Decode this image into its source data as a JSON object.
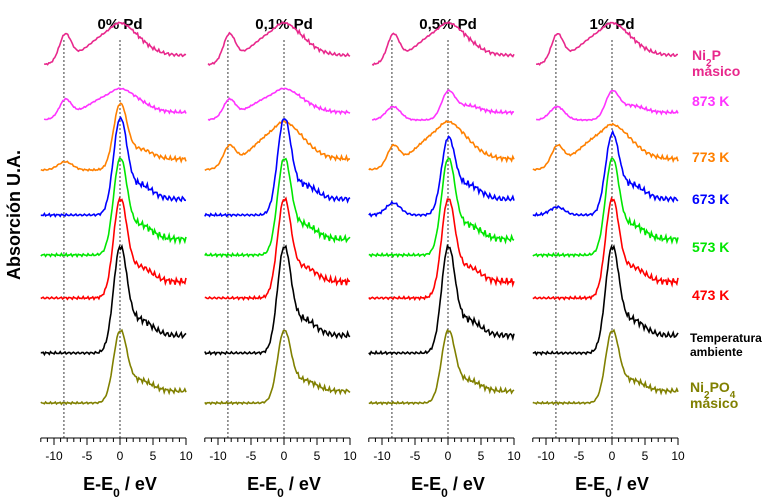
{
  "chart_data": {
    "type": "line",
    "ylabel": "Absorción  U.A.",
    "xlabel_main": "E-E",
    "xlabel_sub": "0",
    "xlabel_unit": " / eV",
    "x_ticks": [
      "-10",
      "-5",
      "0",
      "5",
      "10"
    ],
    "xlim": [
      -12,
      10
    ],
    "reference_lines_x": [
      -8.5,
      0
    ],
    "panels": [
      {
        "title": "0% Pd"
      },
      {
        "title": "0,1% Pd"
      },
      {
        "title": "0,5% Pd"
      },
      {
        "title": "1% Pd"
      }
    ],
    "series": [
      {
        "key": "ni2p",
        "legend_main": "Ni",
        "legend_sub": "2",
        "legend_rest": "P",
        "legend_line2": "másico",
        "color": "#e8288c"
      },
      {
        "key": "k873",
        "legend_main": "873 K",
        "color": "#ff33ff"
      },
      {
        "key": "k773",
        "legend_main": "773 K",
        "color": "#ff8000"
      },
      {
        "key": "k673",
        "legend_main": "673 K",
        "color": "#0000ff"
      },
      {
        "key": "k573",
        "legend_main": "573 K",
        "color": "#00e600"
      },
      {
        "key": "k473",
        "legend_main": "473 K",
        "color": "#ff0000"
      },
      {
        "key": "amb",
        "legend_main": "Temperatura",
        "legend_line2": "ambiente",
        "color": "#000000"
      },
      {
        "key": "ni2po4",
        "legend_main": "Ni",
        "legend_sub": "2",
        "legend_rest": "PO",
        "legend_sub2": "4",
        "legend_line2": "másico",
        "color": "#808000"
      }
    ]
  }
}
